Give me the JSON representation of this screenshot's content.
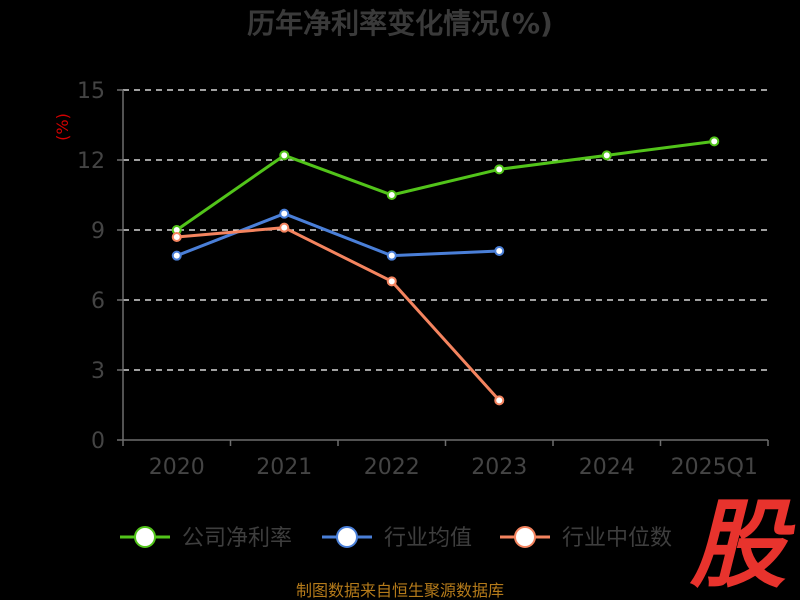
{
  "chart_data": {
    "type": "line",
    "title": "历年净利率变化情况(%)",
    "ylabel": "(%)",
    "xlabel": "",
    "categories": [
      "2020",
      "2021",
      "2022",
      "2023",
      "2024",
      "2025Q1"
    ],
    "ylim": [
      0,
      15
    ],
    "yticks": [
      0,
      3,
      6,
      9,
      12,
      15
    ],
    "grid": true,
    "legend_position": "bottom",
    "series": [
      {
        "name": "公司净利率",
        "color": "#52c41a",
        "values": [
          9.0,
          12.2,
          10.5,
          11.6,
          12.2,
          12.8
        ]
      },
      {
        "name": "行业均值",
        "color": "#4a7fd8",
        "values": [
          7.9,
          9.7,
          7.9,
          8.1,
          null,
          null
        ]
      },
      {
        "name": "行业中位数",
        "color": "#f4845f",
        "values": [
          8.7,
          9.1,
          6.8,
          1.7,
          null,
          null
        ]
      }
    ]
  },
  "source_text": "制图数据来自恒生聚源数据库",
  "logo_text": "股"
}
